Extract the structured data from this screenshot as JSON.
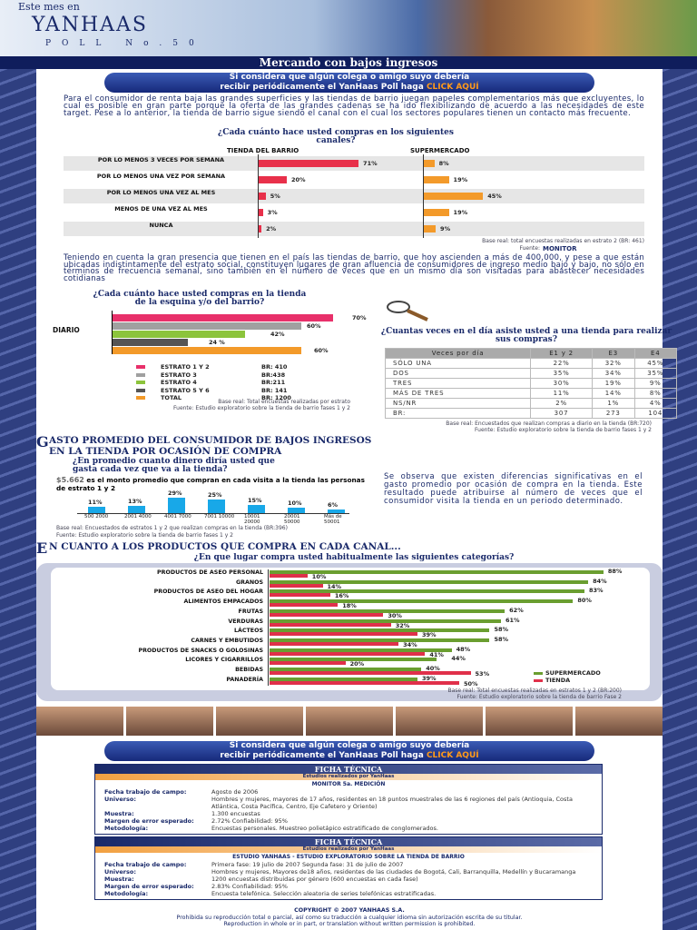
{
  "header": {
    "logo_top": "Este mes en",
    "logo_brand": "YANHAAS",
    "logo_sub": "POLL No.50",
    "title": "Mercando con bajos ingresos"
  },
  "banner": {
    "line1": "Si considera que algún colega o amigo suyo debería",
    "line2": "recibir periódicamente el YanHaas Poll haga",
    "cta": "CLICK AQUÍ"
  },
  "intro": "Para el consumidor de renta baja las grandes superficies y las tiendas de barrio juegan papeles complementarios más que excluyentes, lo cual es posible en gran parte porque la oferta de las grandes cadenas se ha ido flexibilizando de acuerdo a las necesidades de este target. Pese a lo anterior, la tienda de barrio sigue siendo el canal con el cual los sectores populares tienen un contacto más frecuente.",
  "para2": "Teniendo en cuenta la gran presencia que tienen en el país las tiendas de barrio, que hoy ascienden a más de 400,000, y pese a que están ubicadas indistintamente del estrato social, constituyen lugares de gran afluencia de consumidores de ingreso medio bajo y bajo, no sólo en términos de frecuencia semanal, sino también en el número de veces que en un mismo día son visitadas para abastecer necesidades cotidianas",
  "chart_data": [
    {
      "type": "bar",
      "title": "¿Cada cuánto hace usted compras en los siguientes canales?",
      "categories": [
        "POR LO MENOS 3 VECES POR SEMANA",
        "POR LO MENOS UNA VEZ POR SEMANA",
        "POR LO MENOS UNA VEZ AL MES",
        "MENOS DE UNA VEZ AL MES",
        "NUNCA"
      ],
      "series": [
        {
          "name": "TIENDA DEL BARRIO",
          "values": [
            71,
            20,
            5,
            3,
            2
          ],
          "color": "#e8304a"
        },
        {
          "name": "SUPERMERCADO",
          "values": [
            8,
            19,
            45,
            19,
            9
          ],
          "color": "#f39a2a"
        }
      ],
      "unit": "%",
      "foot1": "Base real: total encuestas realizadas en estrato 2 (BR: 461)",
      "foot2": "Fuente:",
      "source_logo": "MONITOR"
    },
    {
      "type": "bar",
      "title": "¿Cada cuánto hace usted compras en la tienda de la esquina y/o del barrio?",
      "categories": [
        "DIARIO"
      ],
      "series": [
        {
          "name": "ESTRATO 1 Y 2",
          "br": "BR: 410",
          "values": [
            70
          ],
          "color": "#e8306a"
        },
        {
          "name": "ESTRATO 3",
          "br": "BR:438",
          "values": [
            60
          ],
          "color": "#a0a0a0"
        },
        {
          "name": "ESTRATO 4",
          "br": "BR:211",
          "values": [
            42
          ],
          "color": "#8cc43c"
        },
        {
          "name": "ESTRATO 5 Y 6",
          "br": "BR: 141",
          "values": [
            24
          ],
          "color": "#555555"
        },
        {
          "name": "TOTAL",
          "br": "BR: 1200",
          "values": [
            60
          ],
          "color": "#f39a2a"
        }
      ],
      "labels": [
        "70%",
        "60%",
        "42%",
        "24 %",
        "60%"
      ],
      "foot1": "Base real: Total encuestas realizadas por estrato",
      "foot2": "Fuente: Estudio exploratorio sobre la tienda de barrio fases 1 y 2"
    },
    {
      "type": "table",
      "title": "¿Cuantas veces en el día asiste usted a una tienda para realizar sus compras?",
      "columns": [
        "Veces por día",
        "E1 y 2",
        "E3",
        "E4"
      ],
      "rows": [
        [
          "SÓLO UNA",
          "22%",
          "32%",
          "45%"
        ],
        [
          "DOS",
          "35%",
          "34%",
          "35%"
        ],
        [
          "TRES",
          "30%",
          "19%",
          "9%"
        ],
        [
          "MÁS DE TRES",
          "11%",
          "14%",
          "8%"
        ],
        [
          "NS/NR",
          "2%",
          "1%",
          "4%"
        ],
        [
          "BR:",
          "307",
          "273",
          "104"
        ]
      ],
      "foot1": "Base real: Encuestados que realizan compras a diario en la tienda (BR:720)",
      "foot2": "Fuente: Estudio exploratorio sobre la tienda de barrio fases 1 y 2"
    },
    {
      "type": "bar",
      "title": "¿En promedio cuanto dinero diría usted que gasta cada vez que va a la tienda?",
      "subtitle_amount": "$5.662",
      "subtitle": "es el monto promedio que compran en cada visita a la tienda las personas de estrato 1 y 2",
      "categories": [
        "500 2000",
        "2001 4000",
        "4001 7000",
        "7001 10000",
        "10001 20000",
        "20001 50000",
        "Más de 50001"
      ],
      "values": [
        11,
        13,
        29,
        25,
        15,
        10,
        6
      ],
      "unit": "%",
      "color": "#18a8e8",
      "foot1": "Base real: Encuestados de estratos 1 y 2 que realizan compras en la tienda (BR:396)",
      "foot2": "Fuente: Estudio exploratorio sobre la tienda de barrio fases 1 y 2"
    },
    {
      "type": "bar",
      "title": "¿En que lugar compra usted habitualmente las siguientes categorías?",
      "categories": [
        "PRODUCTOS DE ASEO PERSONAL",
        "GRANOS",
        "PRODUCTOS DE ASEO DEL HOGAR",
        "ALIMENTOS EMPACADOS",
        "FRUTAS",
        "VERDURAS",
        "LÁCTEOS",
        "CARNES Y EMBUTIDOS",
        "PRODUCTOS DE SNACKS O GOLOSINAS",
        "LICORES Y CIGARRILLOS",
        "BEBIDAS",
        "PANADERÍA"
      ],
      "series": [
        {
          "name": "SUPERMERCADO",
          "values": [
            88,
            84,
            83,
            80,
            62,
            61,
            58,
            58,
            48,
            44,
            40,
            39
          ],
          "color": "#6a9e30"
        },
        {
          "name": "TIENDA",
          "values": [
            10,
            14,
            16,
            18,
            30,
            32,
            39,
            34,
            41,
            20,
            53,
            50
          ],
          "color": "#e0304a"
        }
      ],
      "unit": "%",
      "foot1": "Base real: Total encuestas realizadas en estratos 1 y 2 (BR:200)",
      "foot2": "Fuente: Estudio exploratorio sobre la tienda de barrio Fase 2"
    }
  ],
  "section1": {
    "initial": "G",
    "rest1": "ASTO PROMEDIO DEL CONSUMIDOR DE BAJOS INGRESOS",
    "line2": "EN LA TIENDA POR OCASIÓN DE COMPRA",
    "text": "Se observa que existen diferencias significativas en el gasto promedio por ocasión de compra en la tienda. Este resultado puede atribuirse al número de veces que el consumidor visita la tienda en un periodo determinado."
  },
  "section2": {
    "initial": "E",
    "rest": "N CUANTO A LOS PRODUCTOS QUE COMPRA EN CADA CANAL..."
  },
  "ficha1": {
    "head": "FICHA TÉCNICA",
    "sub": "Estudios realizados por YanHaas",
    "study": "MONITOR 5a. MEDICIÓN",
    "rows": [
      [
        "Fecha trabajo de campo:",
        "Agosto de 2006"
      ],
      [
        "Universo:",
        "Hombres y mujeres, mayores de 17 años, residentes en 18 puntos muestrales de las 6 regiones del país (Antioquia, Costa Atlántica, Costa Pacífica, Centro, Eje Cafetero y Oriente)"
      ],
      [
        "Muestra:",
        "1.300 encuestas"
      ],
      [
        "Margen de error esperado:",
        "2.72% Confiabilidad: 95%"
      ],
      [
        "Metodología:",
        "Encuestas personales. Muestreo polietápico estratificado de conglomerados."
      ]
    ]
  },
  "ficha2": {
    "head": "FICHA TÉCNICA",
    "sub": "Estudios realizados por YanHaas",
    "study": "ESTUDIO YANHAAS - ESTUDIO EXPLORATORIO SOBRE LA TIENDA DE BARRIO",
    "rows": [
      [
        "Fecha trabajo de campo:",
        "Primera fase: 19 julio de 2007 Segunda fase: 31 de julio de 2007"
      ],
      [
        "Universo:",
        "Hombres y mujeres, Mayores de18 años, residentes de las ciudades de Bogotá, Cali, Barranquilla, Medellín y Bucaramanga"
      ],
      [
        "Muestra:",
        "1200 encuestas distribuidas por género (600 encuestas en cada fase)"
      ],
      [
        "Margen de error esperado:",
        "2.83% Confiabilidad: 95%"
      ],
      [
        "Metodología:",
        "Encuesta telefónica. Selección aleatoria de series telefónicas estratificadas."
      ]
    ]
  },
  "copyright": {
    "line1": "COPYRIGHT © 2007 YANHAAS S.A.",
    "line2": "Prohibida su reproducción total o parcial, así como su traducción a cualquier idioma sin autorización escrita de su titular.",
    "line3": "Reproduction in whole or in part, or translation without written permission is prohibited."
  }
}
